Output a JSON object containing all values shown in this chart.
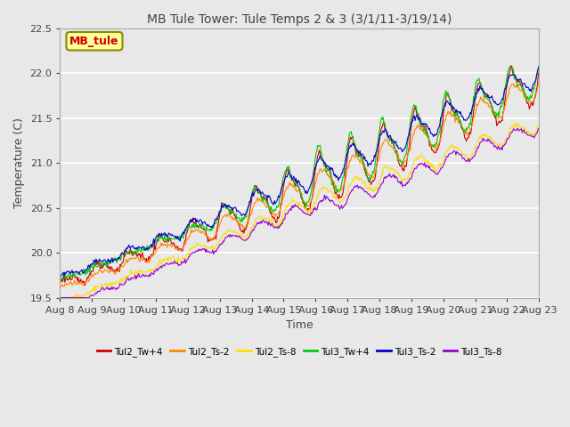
{
  "title": "MB Tule Tower: Tule Temps 2 & 3 (3/1/11-3/19/14)",
  "xlabel": "Time",
  "ylabel": "Temperature (C)",
  "ylim": [
    19.5,
    22.5
  ],
  "xlim": [
    0,
    15
  ],
  "x_tick_labels": [
    "Aug 8",
    "Aug 9",
    "Aug 10",
    "Aug 11",
    "Aug 12",
    "Aug 13",
    "Aug 14",
    "Aug 15",
    "Aug 16",
    "Aug 17",
    "Aug 18",
    "Aug 19",
    "Aug 20",
    "Aug 21",
    "Aug 22",
    "Aug 23"
  ],
  "series_names": [
    "Tul2_Tw+4",
    "Tul2_Ts-2",
    "Tul2_Ts-8",
    "Tul3_Tw+4",
    "Tul3_Ts-2",
    "Tul3_Ts-8"
  ],
  "series_colors": [
    "#cc0000",
    "#ff8800",
    "#ffdd00",
    "#00cc00",
    "#0000cc",
    "#9900cc"
  ],
  "background_color": "#e8e8e8",
  "plot_bg_color": "#e8e8e8",
  "legend_text": "MB_tule",
  "legend_text_color": "#cc0000",
  "legend_bg": "#ffff99",
  "legend_border": "#888800"
}
